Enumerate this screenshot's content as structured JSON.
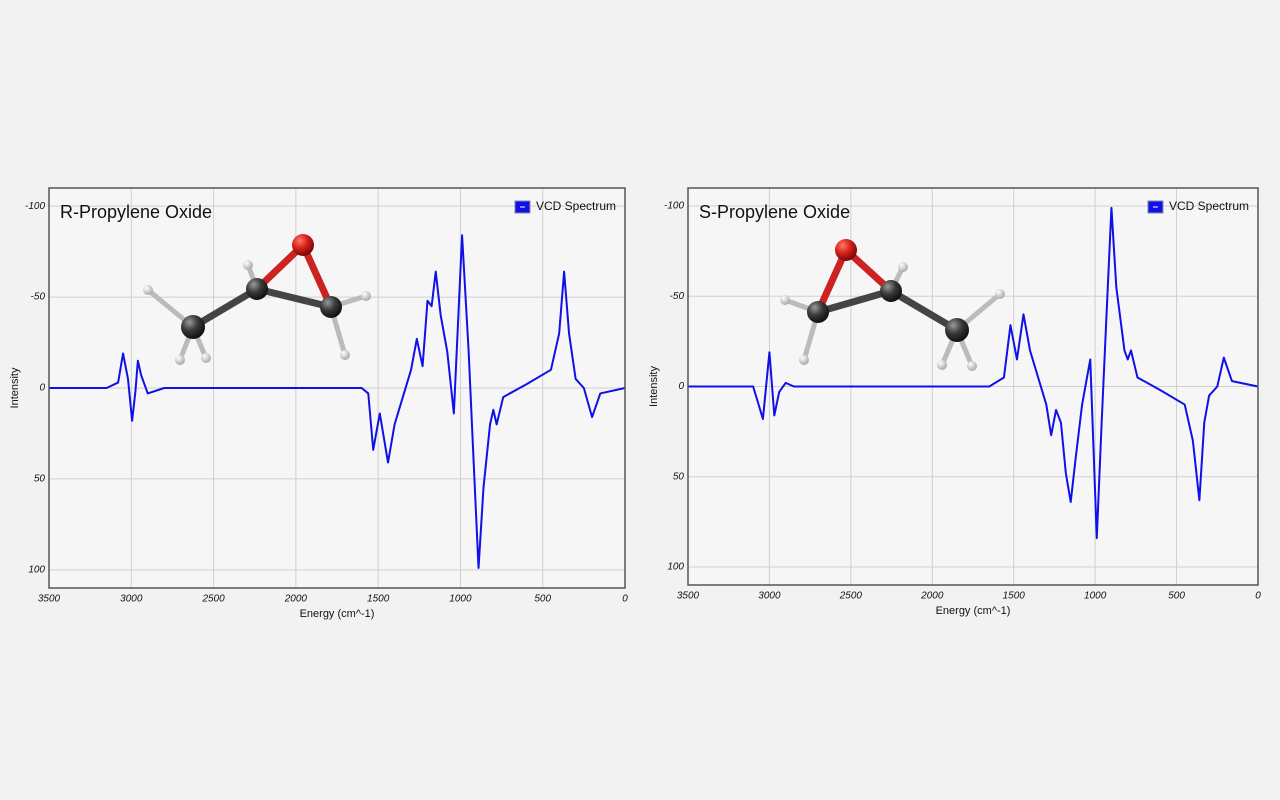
{
  "chart_data": [
    {
      "type": "line",
      "title": "R-Propylene Oxide",
      "xlabel": "Energy (cm^-1)",
      "ylabel": "Intensity",
      "xlim": [
        3500,
        0
      ],
      "ylim": [
        -110,
        110
      ],
      "y_inverted": true,
      "grid": true,
      "legend": "upper right",
      "xticks": [
        3500,
        3000,
        2500,
        2000,
        1500,
        1000,
        500,
        0
      ],
      "yticks": [
        -100,
        -50,
        0,
        50,
        100
      ],
      "x": [
        3500,
        3150,
        3080,
        3050,
        3020,
        2995,
        2975,
        2960,
        2940,
        2900,
        2800,
        1600,
        1560,
        1530,
        1490,
        1440,
        1400,
        1350,
        1300,
        1265,
        1230,
        1200,
        1175,
        1150,
        1120,
        1080,
        1040,
        990,
        950,
        920,
        890,
        860,
        820,
        800,
        780,
        740,
        600,
        450,
        400,
        370,
        340,
        300,
        250,
        200,
        150,
        0
      ],
      "series": [
        {
          "name": "VCD Spectrum",
          "color": "#1010e8",
          "values": [
            0,
            0,
            -3,
            -19,
            -5,
            18,
            2,
            -15,
            -7,
            3,
            0,
            0,
            3,
            34,
            14,
            41,
            20,
            5,
            -10,
            -27,
            -12,
            -48,
            -45,
            -64,
            -40,
            -20,
            14,
            -84,
            -20,
            40,
            99,
            55,
            20,
            12,
            20,
            5,
            -2,
            -10,
            -30,
            -64,
            -30,
            -5,
            0,
            16,
            3,
            0
          ]
        }
      ]
    },
    {
      "type": "line",
      "title": "S-Propylene Oxide",
      "xlabel": "Energy (cm^-1)",
      "ylabel": "Intensity",
      "xlim": [
        3500,
        0
      ],
      "ylim": [
        -110,
        110
      ],
      "y_inverted": true,
      "grid": true,
      "legend": "upper right",
      "xticks": [
        3500,
        3000,
        2500,
        2000,
        1500,
        1000,
        500,
        0
      ],
      "yticks": [
        -100,
        -50,
        0,
        50,
        100
      ],
      "x": [
        3500,
        3100,
        3040,
        3000,
        2970,
        2940,
        2900,
        2850,
        1650,
        1560,
        1520,
        1480,
        1440,
        1400,
        1350,
        1300,
        1270,
        1240,
        1210,
        1180,
        1150,
        1120,
        1080,
        1030,
        990,
        960,
        930,
        900,
        870,
        820,
        800,
        780,
        740,
        600,
        450,
        400,
        360,
        330,
        300,
        250,
        210,
        160,
        0
      ],
      "series": [
        {
          "name": "VCD Spectrum",
          "color": "#1010e8",
          "values": [
            0,
            0,
            18,
            -19,
            16,
            3,
            -2,
            0,
            0,
            -5,
            -34,
            -15,
            -40,
            -20,
            -5,
            10,
            27,
            13,
            20,
            48,
            64,
            40,
            10,
            -15,
            84,
            20,
            -40,
            -99,
            -55,
            -20,
            -15,
            -20,
            -5,
            2,
            10,
            30,
            63,
            20,
            5,
            0,
            -16,
            -3,
            0
          ]
        }
      ]
    }
  ]
}
